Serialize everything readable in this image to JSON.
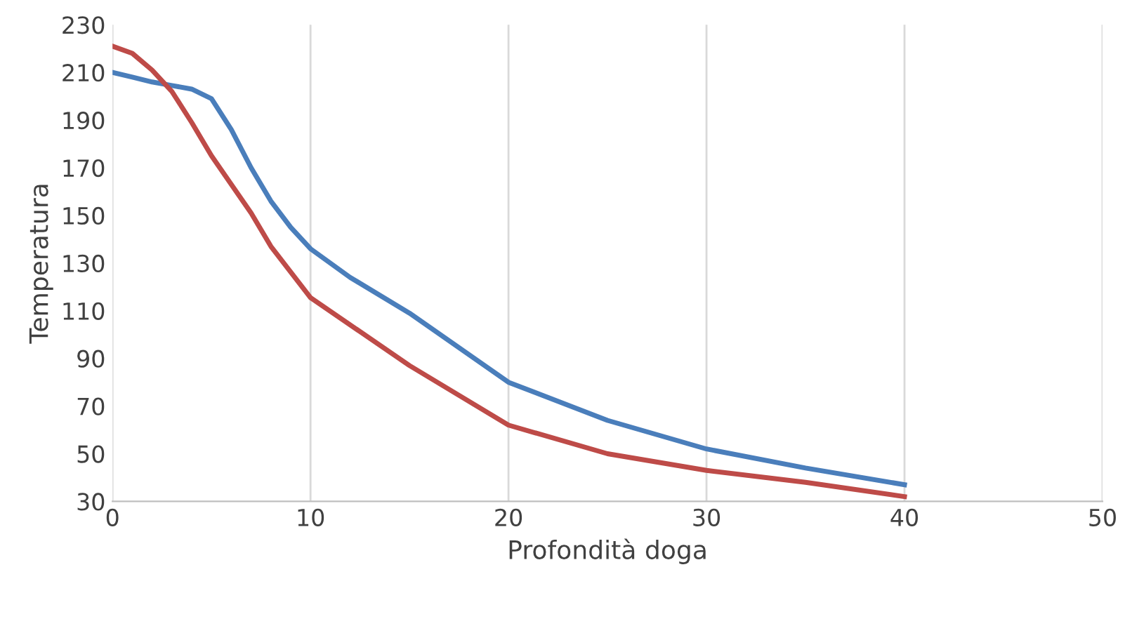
{
  "chart_data": {
    "type": "line",
    "xlabel": "Profondità doga",
    "ylabel": "Temperatura",
    "series": [
      {
        "color": "#4a7ebb",
        "x": [
          0,
          1,
          2,
          3,
          4,
          5,
          6,
          7,
          8,
          9,
          10,
          12,
          15,
          20,
          25,
          30,
          35,
          40
        ],
        "values": [
          210,
          208,
          206,
          204.5,
          203,
          199,
          186,
          170,
          156,
          145,
          136,
          124,
          109,
          80,
          64,
          52,
          44,
          37
        ]
      },
      {
        "color": "#be4b48",
        "x": [
          0,
          1,
          2,
          3,
          4,
          5,
          7,
          8,
          10,
          15,
          20,
          25,
          30,
          35,
          40
        ],
        "values": [
          221,
          218,
          211,
          202,
          189,
          175,
          151,
          137,
          115.5,
          87,
          62,
          50,
          43,
          38,
          32
        ]
      }
    ],
    "xlim": [
      0,
      50
    ],
    "xticks": [
      0,
      10,
      20,
      30,
      40,
      50
    ],
    "ylim": [
      30,
      230
    ],
    "yticks": [
      30,
      50,
      70,
      90,
      110,
      130,
      150,
      170,
      190,
      210,
      230
    ],
    "grid": "x",
    "legend": false,
    "marker": "none",
    "line_style": "solid"
  }
}
